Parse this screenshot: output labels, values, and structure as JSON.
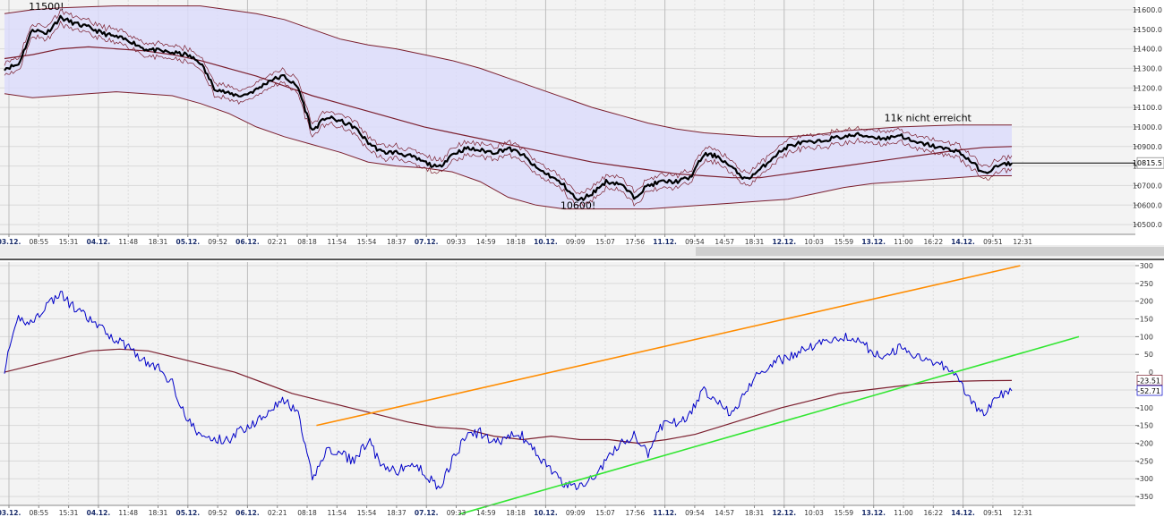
{
  "chart_data": [
    {
      "type": "line",
      "panel": "price",
      "ylim": [
        10450,
        11650
      ],
      "y_ticks": [
        10500,
        10600,
        10700,
        10800,
        10900,
        11000,
        11100,
        11200,
        11300,
        11400,
        11500,
        11600
      ],
      "y_tick_labels": [
        "10500.0",
        "10600.0",
        "10700.0",
        "10800.0",
        "10900.0",
        "11000.0",
        "11100.0",
        "11200.0",
        "11300.0",
        "11400.0",
        "11500.0",
        "11600.0"
      ],
      "grid": true,
      "colors": {
        "price": "#000000",
        "band_fill": "#dcdcfa",
        "band_line": "#7b1f2e",
        "ma_line": "#7b1f2e"
      },
      "series": [
        {
          "role": "price",
          "values": [
            11300,
            11320,
            11500,
            11480,
            11560,
            11530,
            11510,
            11480,
            11460,
            11440,
            11400,
            11390,
            11380,
            11370,
            11330,
            11200,
            11170,
            11160,
            11190,
            11240,
            11260,
            11200,
            10980,
            11050,
            11030,
            11000,
            10920,
            10870,
            10870,
            10850,
            10820,
            10790,
            10860,
            10890,
            10880,
            10870,
            10890,
            10860,
            10790,
            10750,
            10700,
            10620,
            10660,
            10720,
            10710,
            10640,
            10700,
            10720,
            10720,
            10740,
            10860,
            10850,
            10790,
            10730,
            10780,
            10850,
            10900,
            10920,
            10920,
            10940,
            10950,
            10960,
            10950,
            10940,
            10960,
            10920,
            10910,
            10890,
            10880,
            10830,
            10760,
            10800,
            10815
          ]
        },
        {
          "role": "band-upper",
          "values": [
            11580,
            11600,
            11610,
            11615,
            11620,
            11620,
            11620,
            11620,
            11600,
            11580,
            11550,
            11500,
            11450,
            11420,
            11400,
            11370,
            11340,
            11300,
            11250,
            11200,
            11150,
            11100,
            11060,
            11020,
            10990,
            10970,
            10960,
            10950,
            10950,
            10960,
            10980,
            10990,
            11000,
            11005,
            11010,
            11010,
            11010
          ]
        },
        {
          "role": "band-lower",
          "values": [
            11170,
            11150,
            11160,
            11170,
            11180,
            11170,
            11160,
            11120,
            11070,
            11000,
            10950,
            10910,
            10870,
            10820,
            10800,
            10790,
            10770,
            10720,
            10640,
            10600,
            10580,
            10580,
            10580,
            10580,
            10590,
            10600,
            10610,
            10620,
            10630,
            10660,
            10690,
            10710,
            10720,
            10730,
            10740,
            10750,
            10750
          ]
        },
        {
          "role": "moving-average",
          "values": [
            11350,
            11370,
            11400,
            11410,
            11400,
            11390,
            11370,
            11340,
            11300,
            11260,
            11210,
            11160,
            11120,
            11080,
            11040,
            11000,
            10970,
            10940,
            10910,
            10880,
            10850,
            10820,
            10800,
            10780,
            10760,
            10750,
            10740,
            10740,
            10760,
            10780,
            10800,
            10820,
            10840,
            10860,
            10880,
            10895,
            10900
          ]
        }
      ],
      "annotations": [
        {
          "text": "11500!",
          "x_index": 3,
          "y": 11600
        },
        {
          "text": "10600!",
          "x_index": 41,
          "y": 10580
        },
        {
          "text": "11k nicht erreicht",
          "x_index": 66,
          "y": 11030
        }
      ],
      "last_value_label": "10815.5",
      "last_value": 10815.5
    },
    {
      "type": "line",
      "panel": "oscillator",
      "ylim": [
        -375,
        310
      ],
      "y_ticks": [
        -350,
        -300,
        -250,
        -200,
        -150,
        -100,
        -50,
        0,
        50,
        100,
        150,
        200,
        250,
        300
      ],
      "y_tick_labels": [
        "-350",
        "-300",
        "-250",
        "-200",
        "-150",
        "-100",
        "-50",
        "0",
        "50",
        "100",
        "150",
        "200",
        "250",
        "300"
      ],
      "grid": true,
      "colors": {
        "oscillator": "#0000c8",
        "signal": "#7b1f2e",
        "upper_trend": "#ff8c00",
        "lower_trend": "#33e633"
      },
      "series": [
        {
          "role": "oscillator",
          "values": [
            10,
            150,
            140,
            190,
            220,
            180,
            150,
            120,
            90,
            70,
            30,
            10,
            -30,
            -130,
            -180,
            -190,
            -190,
            -160,
            -140,
            -100,
            -80,
            -120,
            -300,
            -220,
            -230,
            -250,
            -190,
            -270,
            -280,
            -260,
            -280,
            -330,
            -250,
            -180,
            -170,
            -200,
            -180,
            -180,
            -230,
            -270,
            -320,
            -320,
            -300,
            -250,
            -200,
            -180,
            -230,
            -150,
            -140,
            -120,
            -50,
            -80,
            -120,
            -50,
            0,
            30,
            40,
            60,
            80,
            90,
            100,
            90,
            60,
            40,
            70,
            50,
            40,
            20,
            0,
            -80,
            -120,
            -70,
            -52.7
          ]
        },
        {
          "role": "signal",
          "values": [
            0,
            20,
            40,
            60,
            65,
            60,
            40,
            20,
            0,
            -30,
            -60,
            -80,
            -100,
            -120,
            -140,
            -155,
            -160,
            -180,
            -190,
            -180,
            -190,
            -190,
            -200,
            -190,
            -175,
            -150,
            -125,
            -100,
            -80,
            -60,
            -50,
            -40,
            -30,
            -26,
            -24,
            -23.5
          ]
        }
      ],
      "trendlines": [
        {
          "role": "upper-channel",
          "from": {
            "x_index": 22.3,
            "y": -150
          },
          "to": {
            "x_index": 72.6,
            "y": 300
          }
        },
        {
          "role": "lower-channel",
          "from": {
            "x_index": 32.5,
            "y": -400
          },
          "to": {
            "x_index": 76.8,
            "y": 100
          }
        }
      ],
      "last_value_labels": [
        "-23.51",
        "-52.71"
      ],
      "last_values": [
        -23.51,
        -52.71
      ]
    }
  ],
  "x_axis": {
    "labels": [
      {
        "text": "03.12.",
        "bold": true
      },
      {
        "text": "08:55",
        "bold": false
      },
      {
        "text": "15:31",
        "bold": false
      },
      {
        "text": "04.12.",
        "bold": true
      },
      {
        "text": "11:48",
        "bold": false
      },
      {
        "text": "18:31",
        "bold": false
      },
      {
        "text": "05.12.",
        "bold": true
      },
      {
        "text": "09:52",
        "bold": false
      },
      {
        "text": "06.12.",
        "bold": true
      },
      {
        "text": "02:21",
        "bold": false
      },
      {
        "text": "08:18",
        "bold": false
      },
      {
        "text": "11:54",
        "bold": false
      },
      {
        "text": "15:54",
        "bold": false
      },
      {
        "text": "18:37",
        "bold": false
      },
      {
        "text": "07.12.",
        "bold": true
      },
      {
        "text": "09:33",
        "bold": false
      },
      {
        "text": "14:59",
        "bold": false
      },
      {
        "text": "18:18",
        "bold": false
      },
      {
        "text": "10.12.",
        "bold": true
      },
      {
        "text": "09:09",
        "bold": false
      },
      {
        "text": "15:07",
        "bold": false
      },
      {
        "text": "17:56",
        "bold": false
      },
      {
        "text": "11.12.",
        "bold": true
      },
      {
        "text": "09:54",
        "bold": false
      },
      {
        "text": "14:57",
        "bold": false
      },
      {
        "text": "18:31",
        "bold": false
      },
      {
        "text": "12.12.",
        "bold": true
      },
      {
        "text": "10:03",
        "bold": false
      },
      {
        "text": "15:59",
        "bold": false
      },
      {
        "text": "13.12.",
        "bold": true
      },
      {
        "text": "11:00",
        "bold": false
      },
      {
        "text": "16:22",
        "bold": false
      },
      {
        "text": "14.12.",
        "bold": true
      },
      {
        "text": "09:51",
        "bold": false
      },
      {
        "text": "12:31",
        "bold": false
      }
    ]
  }
}
